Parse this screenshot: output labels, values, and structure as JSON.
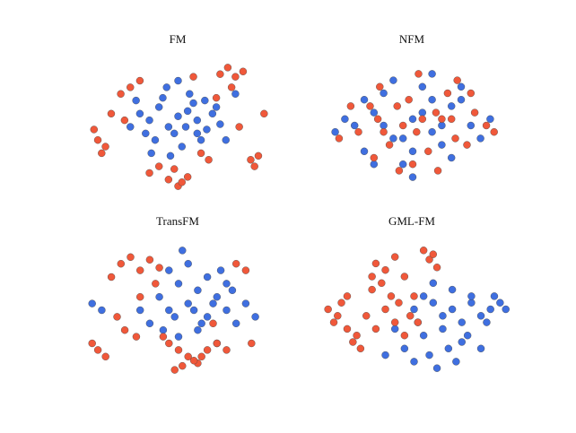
{
  "chart_data": [
    {
      "type": "scatter",
      "title": "FM",
      "xlim": [
        0,
        100
      ],
      "ylim": [
        0,
        100
      ],
      "series": [
        {
          "color": "#3f6fe0",
          "x": [
            30,
            35,
            40,
            45,
            50,
            55,
            60,
            65,
            38,
            42,
            48,
            52,
            58,
            62,
            68,
            72,
            25,
            33,
            44,
            56,
            64,
            70,
            36,
            46,
            54,
            60,
            28,
            50,
            75,
            80
          ],
          "values": [
            60,
            55,
            65,
            50,
            58,
            62,
            55,
            48,
            40,
            72,
            45,
            35,
            68,
            40,
            60,
            52,
            50,
            45,
            80,
            75,
            70,
            65,
            30,
            28,
            50,
            45,
            70,
            85,
            40,
            75
          ]
        },
        {
          "color": "#f0583a",
          "x": [
            72,
            76,
            80,
            84,
            78,
            45,
            50,
            55,
            48,
            52,
            8,
            12,
            6,
            10,
            88,
            92,
            90,
            20,
            25,
            30,
            62,
            66,
            40,
            35,
            70,
            15,
            95,
            58,
            82,
            22
          ],
          "values": [
            90,
            95,
            88,
            92,
            80,
            10,
            5,
            12,
            18,
            8,
            40,
            35,
            48,
            30,
            25,
            28,
            20,
            75,
            80,
            85,
            30,
            25,
            20,
            15,
            72,
            60,
            60,
            88,
            50,
            55
          ]
        }
      ]
    },
    {
      "type": "scatter",
      "title": "NFM",
      "xlim": [
        0,
        100
      ],
      "ylim": [
        0,
        100
      ],
      "series": [
        {
          "color": "#3f6fe0",
          "x": [
            20,
            30,
            40,
            50,
            60,
            70,
            80,
            25,
            35,
            45,
            55,
            65,
            75,
            15,
            85,
            30,
            50,
            70,
            40,
            60,
            10,
            90,
            35,
            55,
            65,
            45,
            25,
            75,
            50,
            60
          ],
          "values": [
            50,
            60,
            40,
            55,
            45,
            65,
            50,
            30,
            75,
            20,
            80,
            35,
            70,
            55,
            40,
            20,
            10,
            25,
            85,
            90,
            45,
            55,
            50,
            60,
            50,
            40,
            70,
            80,
            30,
            70
          ]
        },
        {
          "color": "#f0583a",
          "x": [
            22,
            32,
            42,
            52,
            62,
            72,
            82,
            28,
            38,
            48,
            58,
            68,
            78,
            12,
            88,
            33,
            53,
            73,
            43,
            63,
            18,
            92,
            45,
            55,
            35,
            65,
            50,
            70,
            30,
            80
          ],
          "values": [
            45,
            55,
            65,
            45,
            60,
            40,
            60,
            65,
            35,
            70,
            30,
            75,
            35,
            40,
            50,
            80,
            90,
            85,
            15,
            15,
            65,
            45,
            50,
            55,
            45,
            55,
            20,
            55,
            25,
            75
          ]
        }
      ]
    },
    {
      "type": "scatter",
      "title": "TransFM",
      "xlim": [
        0,
        100
      ],
      "ylim": [
        0,
        100
      ],
      "series": [
        {
          "color": "#3f6fe0",
          "x": [
            40,
            45,
            50,
            55,
            60,
            65,
            70,
            75,
            80,
            85,
            50,
            60,
            70,
            45,
            55,
            65,
            35,
            75,
            90,
            5,
            10,
            30,
            58,
            62,
            48,
            68,
            78,
            52,
            42,
            72
          ],
          "values": [
            60,
            50,
            70,
            55,
            65,
            45,
            60,
            50,
            40,
            55,
            30,
            35,
            25,
            80,
            85,
            75,
            40,
            70,
            45,
            55,
            50,
            50,
            50,
            40,
            45,
            55,
            65,
            95,
            35,
            80
          ]
        },
        {
          "color": "#f0583a",
          "x": [
            20,
            25,
            30,
            35,
            15,
            40,
            8,
            12,
            5,
            50,
            55,
            60,
            45,
            65,
            48,
            52,
            58,
            62,
            85,
            80,
            28,
            22,
            70,
            75,
            30,
            38,
            18,
            42,
            88,
            68
          ],
          "values": [
            85,
            90,
            80,
            88,
            75,
            82,
            20,
            15,
            25,
            20,
            15,
            10,
            25,
            20,
            5,
            8,
            12,
            15,
            80,
            85,
            30,
            35,
            25,
            20,
            60,
            70,
            45,
            30,
            25,
            40
          ]
        }
      ]
    },
    {
      "type": "scatter",
      "title": "GML-FM",
      "xlim": [
        0,
        100
      ],
      "ylim": [
        0,
        100
      ],
      "series": [
        {
          "color": "#3f6fe0",
          "x": [
            50,
            55,
            60,
            65,
            70,
            75,
            80,
            85,
            90,
            95,
            55,
            65,
            75,
            60,
            70,
            80,
            45,
            50,
            58,
            68,
            78,
            88,
            62,
            72,
            40,
            35,
            85,
            92,
            98,
            52
          ],
          "values": [
            50,
            60,
            55,
            45,
            50,
            40,
            55,
            45,
            50,
            55,
            30,
            35,
            25,
            70,
            65,
            60,
            20,
            10,
            15,
            20,
            30,
            40,
            5,
            10,
            35,
            15,
            20,
            60,
            50,
            40
          ]
        },
        {
          "color": "#f0583a",
          "x": [
            30,
            35,
            40,
            45,
            33,
            38,
            28,
            42,
            5,
            8,
            12,
            15,
            20,
            55,
            58,
            60,
            25,
            30,
            48,
            52,
            22,
            18,
            10,
            35,
            45,
            50,
            40,
            28,
            62,
            15
          ],
          "values": [
            85,
            80,
            90,
            75,
            70,
            60,
            65,
            55,
            50,
            40,
            55,
            35,
            30,
            95,
            88,
            92,
            45,
            35,
            45,
            40,
            20,
            25,
            45,
            50,
            30,
            60,
            40,
            75,
            82,
            60
          ]
        }
      ]
    }
  ]
}
